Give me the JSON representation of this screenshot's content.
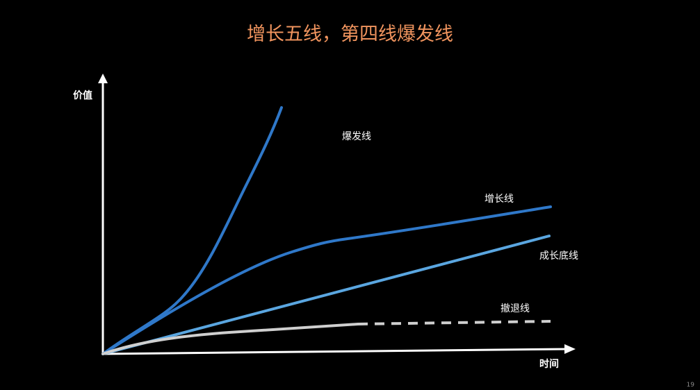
{
  "slide": {
    "title": "增长五线，第四线爆发线",
    "title_color": "#f0945e",
    "page_number": "19"
  },
  "axes": {
    "y_label": "价值",
    "x_label": "时间",
    "color": "#ffffff"
  },
  "lines": [
    {
      "label": "爆发线",
      "color": "#2f78c9",
      "style": "solid"
    },
    {
      "label": "增长线",
      "color": "#2f78c9",
      "style": "solid"
    },
    {
      "label": "成长底线",
      "color": "#5aa6e0",
      "style": "solid"
    },
    {
      "label": "撤退线",
      "color": "#cfcfcf",
      "style": "solid-then-dashed"
    }
  ]
}
